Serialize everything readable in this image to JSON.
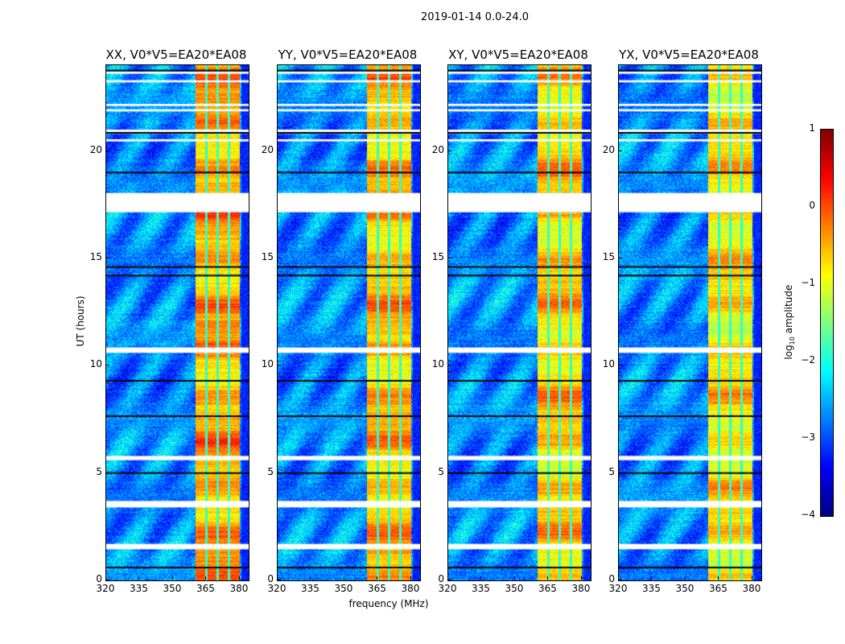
{
  "chart_data": {
    "type": "heatmap",
    "title": "2019-01-14 0.0-24.0",
    "xlabel": "frequency (MHz)",
    "ylabel": "UT (hours)",
    "xlim": [
      320,
      384
    ],
    "ylim": [
      0,
      24
    ],
    "xticks": [
      "320",
      "335",
      "350",
      "365",
      "380"
    ],
    "yticks": [
      "0",
      "5",
      "10",
      "15",
      "20"
    ],
    "panels": [
      {
        "title": "XX, V0*V5=EA20*EA08",
        "band_level": -0.6
      },
      {
        "title": "YY, V0*V5=EA20*EA08",
        "band_level": -0.7
      },
      {
        "title": "XY, V0*V5=EA20*EA08",
        "band_level": -0.8
      },
      {
        "title": "YX, V0*V5=EA20*EA08",
        "band_level": -0.9
      }
    ],
    "background_level": -2.7,
    "band_mhz": [
      360,
      380
    ],
    "band_dividers_mhz": [
      365,
      370,
      375
    ],
    "flagged_white_hours": [
      [
        23.6,
        23.7
      ],
      [
        23.2,
        23.3
      ],
      [
        22.1,
        22.2
      ],
      [
        21.85,
        21.95
      ],
      [
        20.8,
        21.0
      ],
      [
        20.45,
        20.55
      ],
      [
        17.15,
        18.05
      ],
      [
        10.6,
        10.85
      ],
      [
        5.6,
        5.8
      ],
      [
        3.4,
        3.7
      ],
      [
        1.45,
        1.7
      ]
    ],
    "black_line_hours": [
      23.75,
      20.85,
      19.0,
      14.6,
      14.2,
      9.3,
      7.65,
      5.0,
      0.6
    ],
    "colorbar": {
      "label": "log10 amplitude",
      "label_main": "log",
      "label_sub": "10",
      "label_rest": " amplitude",
      "range": [
        -4,
        1
      ],
      "ticks": [
        "1",
        "0",
        "−1",
        "−2",
        "−3",
        "−4"
      ],
      "colormap": "jet"
    }
  }
}
